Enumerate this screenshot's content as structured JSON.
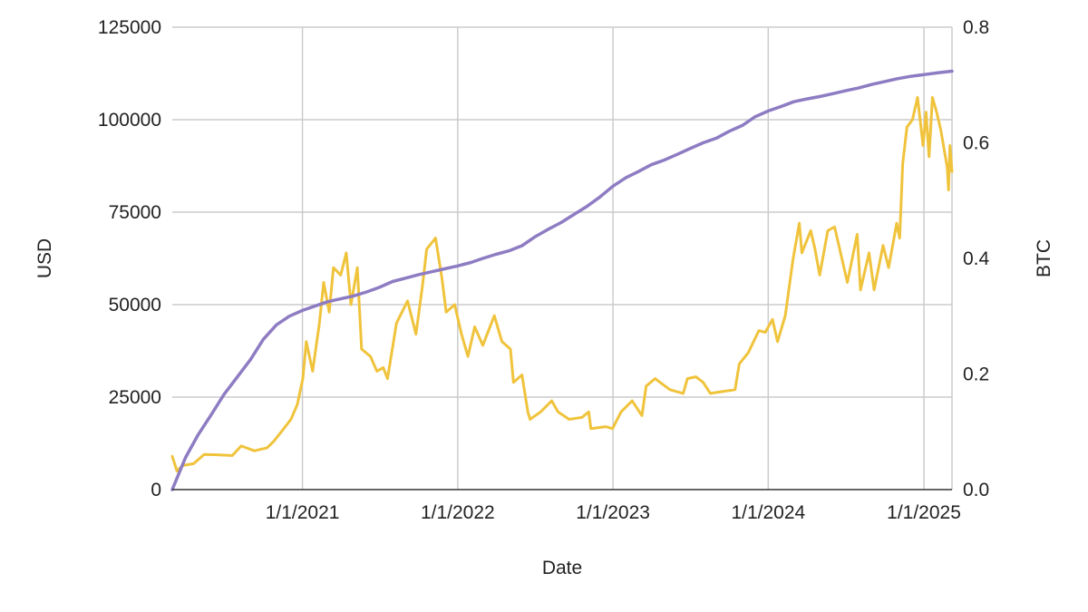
{
  "chart_data": {
    "type": "line",
    "title": "",
    "xlabel": "Date",
    "ylabel": "USD",
    "y2label": "BTC",
    "x_range": [
      "2020-03-01",
      "2025-03-08"
    ],
    "ylim": [
      0,
      125000
    ],
    "y2lim": [
      0,
      0.8
    ],
    "y_ticks": [
      0,
      25000,
      50000,
      75000,
      100000,
      125000
    ],
    "y2_ticks": [
      "0.0",
      "0.2",
      "0.4",
      "0.6",
      "0.8"
    ],
    "x_ticks": [
      {
        "date": "2021-01-01",
        "label": "1/1/2021"
      },
      {
        "date": "2022-01-01",
        "label": "1/1/2022"
      },
      {
        "date": "2023-01-01",
        "label": "1/1/2023"
      },
      {
        "date": "2024-01-01",
        "label": "1/1/2024"
      },
      {
        "date": "2025-01-01",
        "label": "1/1/2025"
      }
    ],
    "grid": true,
    "series": [
      {
        "axis": "left",
        "color": "#F0C33C",
        "points": [
          [
            "2020-03-01",
            9000
          ],
          [
            "2020-03-12",
            5000
          ],
          [
            "2020-03-25",
            6500
          ],
          [
            "2020-04-20",
            7000
          ],
          [
            "2020-05-15",
            9500
          ],
          [
            "2020-06-15",
            9400
          ],
          [
            "2020-07-20",
            9200
          ],
          [
            "2020-08-10",
            11800
          ],
          [
            "2020-09-10",
            10500
          ],
          [
            "2020-10-10",
            11300
          ],
          [
            "2020-10-25",
            13000
          ],
          [
            "2020-11-15",
            16000
          ],
          [
            "2020-12-05",
            19000
          ],
          [
            "2020-12-20",
            23000
          ],
          [
            "2021-01-02",
            30000
          ],
          [
            "2021-01-10",
            40000
          ],
          [
            "2021-01-25",
            32000
          ],
          [
            "2021-02-10",
            45000
          ],
          [
            "2021-02-20",
            56000
          ],
          [
            "2021-03-05",
            48000
          ],
          [
            "2021-03-15",
            60000
          ],
          [
            "2021-04-01",
            58000
          ],
          [
            "2021-04-14",
            64000
          ],
          [
            "2021-04-25",
            50000
          ],
          [
            "2021-05-10",
            60000
          ],
          [
            "2021-05-20",
            38000
          ],
          [
            "2021-06-10",
            36000
          ],
          [
            "2021-06-25",
            32000
          ],
          [
            "2021-07-10",
            33000
          ],
          [
            "2021-07-20",
            30000
          ],
          [
            "2021-08-10",
            45000
          ],
          [
            "2021-09-05",
            51000
          ],
          [
            "2021-09-25",
            42000
          ],
          [
            "2021-10-10",
            55000
          ],
          [
            "2021-10-20",
            65000
          ],
          [
            "2021-11-10",
            68000
          ],
          [
            "2021-11-25",
            57000
          ],
          [
            "2021-12-05",
            48000
          ],
          [
            "2021-12-25",
            50000
          ],
          [
            "2022-01-10",
            42000
          ],
          [
            "2022-01-25",
            36000
          ],
          [
            "2022-02-10",
            44000
          ],
          [
            "2022-03-01",
            39000
          ],
          [
            "2022-03-28",
            47000
          ],
          [
            "2022-04-15",
            40000
          ],
          [
            "2022-05-05",
            38000
          ],
          [
            "2022-05-12",
            29000
          ],
          [
            "2022-06-01",
            31000
          ],
          [
            "2022-06-15",
            21000
          ],
          [
            "2022-06-20",
            19000
          ],
          [
            "2022-07-15",
            21000
          ],
          [
            "2022-08-10",
            24000
          ],
          [
            "2022-08-25",
            21000
          ],
          [
            "2022-09-20",
            19000
          ],
          [
            "2022-10-20",
            19500
          ],
          [
            "2022-11-05",
            21000
          ],
          [
            "2022-11-10",
            16500
          ],
          [
            "2022-12-15",
            17000
          ],
          [
            "2022-12-31",
            16500
          ],
          [
            "2023-01-20",
            21000
          ],
          [
            "2023-02-15",
            24000
          ],
          [
            "2023-03-10",
            20000
          ],
          [
            "2023-03-20",
            28000
          ],
          [
            "2023-04-10",
            30000
          ],
          [
            "2023-05-15",
            27000
          ],
          [
            "2023-06-15",
            26000
          ],
          [
            "2023-06-25",
            30000
          ],
          [
            "2023-07-15",
            30500
          ],
          [
            "2023-08-01",
            29000
          ],
          [
            "2023-08-18",
            26000
          ],
          [
            "2023-09-15",
            26500
          ],
          [
            "2023-10-15",
            27000
          ],
          [
            "2023-10-25",
            34000
          ],
          [
            "2023-11-15",
            37000
          ],
          [
            "2023-12-10",
            43000
          ],
          [
            "2023-12-25",
            42500
          ],
          [
            "2024-01-11",
            46000
          ],
          [
            "2024-01-23",
            40000
          ],
          [
            "2024-02-10",
            47000
          ],
          [
            "2024-02-28",
            62000
          ],
          [
            "2024-03-14",
            72000
          ],
          [
            "2024-03-20",
            64000
          ],
          [
            "2024-04-10",
            70000
          ],
          [
            "2024-04-20",
            65000
          ],
          [
            "2024-05-01",
            58000
          ],
          [
            "2024-05-20",
            70000
          ],
          [
            "2024-06-05",
            71000
          ],
          [
            "2024-06-25",
            61000
          ],
          [
            "2024-07-05",
            56000
          ],
          [
            "2024-07-28",
            69000
          ],
          [
            "2024-08-05",
            54000
          ],
          [
            "2024-08-25",
            64000
          ],
          [
            "2024-09-06",
            54000
          ],
          [
            "2024-09-27",
            66000
          ],
          [
            "2024-10-10",
            60000
          ],
          [
            "2024-10-29",
            72000
          ],
          [
            "2024-11-05",
            68000
          ],
          [
            "2024-11-12",
            88000
          ],
          [
            "2024-11-22",
            98000
          ],
          [
            "2024-12-05",
            100000
          ],
          [
            "2024-12-17",
            106000
          ],
          [
            "2024-12-30",
            93000
          ],
          [
            "2025-01-06",
            102000
          ],
          [
            "2025-01-13",
            90000
          ],
          [
            "2025-01-21",
            106000
          ],
          [
            "2025-01-31",
            102000
          ],
          [
            "2025-02-10",
            97000
          ],
          [
            "2025-02-25",
            87000
          ],
          [
            "2025-02-28",
            81000
          ],
          [
            "2025-03-03",
            93000
          ],
          [
            "2025-03-08",
            86000
          ]
        ]
      },
      {
        "axis": "right",
        "color": "#8E7CC3",
        "points": [
          [
            "2020-03-01",
            0.0
          ],
          [
            "2020-04-01",
            0.055
          ],
          [
            "2020-05-01",
            0.095
          ],
          [
            "2020-06-01",
            0.13
          ],
          [
            "2020-07-01",
            0.165
          ],
          [
            "2020-08-01",
            0.195
          ],
          [
            "2020-09-01",
            0.225
          ],
          [
            "2020-10-01",
            0.26
          ],
          [
            "2020-11-01",
            0.285
          ],
          [
            "2020-12-01",
            0.3
          ],
          [
            "2021-01-01",
            0.31
          ],
          [
            "2021-02-01",
            0.318
          ],
          [
            "2021-03-01",
            0.325
          ],
          [
            "2021-04-01",
            0.33
          ],
          [
            "2021-05-01",
            0.335
          ],
          [
            "2021-06-01",
            0.342
          ],
          [
            "2021-07-01",
            0.35
          ],
          [
            "2021-08-01",
            0.36
          ],
          [
            "2021-09-01",
            0.366
          ],
          [
            "2021-10-01",
            0.372
          ],
          [
            "2021-11-01",
            0.377
          ],
          [
            "2021-12-01",
            0.382
          ],
          [
            "2022-01-01",
            0.387
          ],
          [
            "2022-02-01",
            0.393
          ],
          [
            "2022-03-01",
            0.4
          ],
          [
            "2022-04-01",
            0.407
          ],
          [
            "2022-05-01",
            0.413
          ],
          [
            "2022-06-01",
            0.422
          ],
          [
            "2022-07-01",
            0.437
          ],
          [
            "2022-08-01",
            0.45
          ],
          [
            "2022-09-01",
            0.462
          ],
          [
            "2022-10-01",
            0.476
          ],
          [
            "2022-11-01",
            0.49
          ],
          [
            "2022-12-01",
            0.506
          ],
          [
            "2023-01-01",
            0.525
          ],
          [
            "2023-02-01",
            0.54
          ],
          [
            "2023-03-01",
            0.55
          ],
          [
            "2023-04-01",
            0.562
          ],
          [
            "2023-05-01",
            0.57
          ],
          [
            "2023-06-01",
            0.58
          ],
          [
            "2023-07-01",
            0.59
          ],
          [
            "2023-08-01",
            0.6
          ],
          [
            "2023-09-01",
            0.608
          ],
          [
            "2023-10-01",
            0.62
          ],
          [
            "2023-11-01",
            0.63
          ],
          [
            "2023-12-01",
            0.645
          ],
          [
            "2024-01-01",
            0.655
          ],
          [
            "2024-02-01",
            0.663
          ],
          [
            "2024-03-01",
            0.671
          ],
          [
            "2024-04-01",
            0.676
          ],
          [
            "2024-05-01",
            0.68
          ],
          [
            "2024-06-01",
            0.685
          ],
          [
            "2024-07-01",
            0.69
          ],
          [
            "2024-08-01",
            0.695
          ],
          [
            "2024-09-01",
            0.701
          ],
          [
            "2024-10-01",
            0.706
          ],
          [
            "2024-11-01",
            0.711
          ],
          [
            "2024-12-01",
            0.715
          ],
          [
            "2025-01-01",
            0.718
          ],
          [
            "2025-02-01",
            0.721
          ],
          [
            "2025-03-08",
            0.724
          ]
        ]
      }
    ]
  }
}
